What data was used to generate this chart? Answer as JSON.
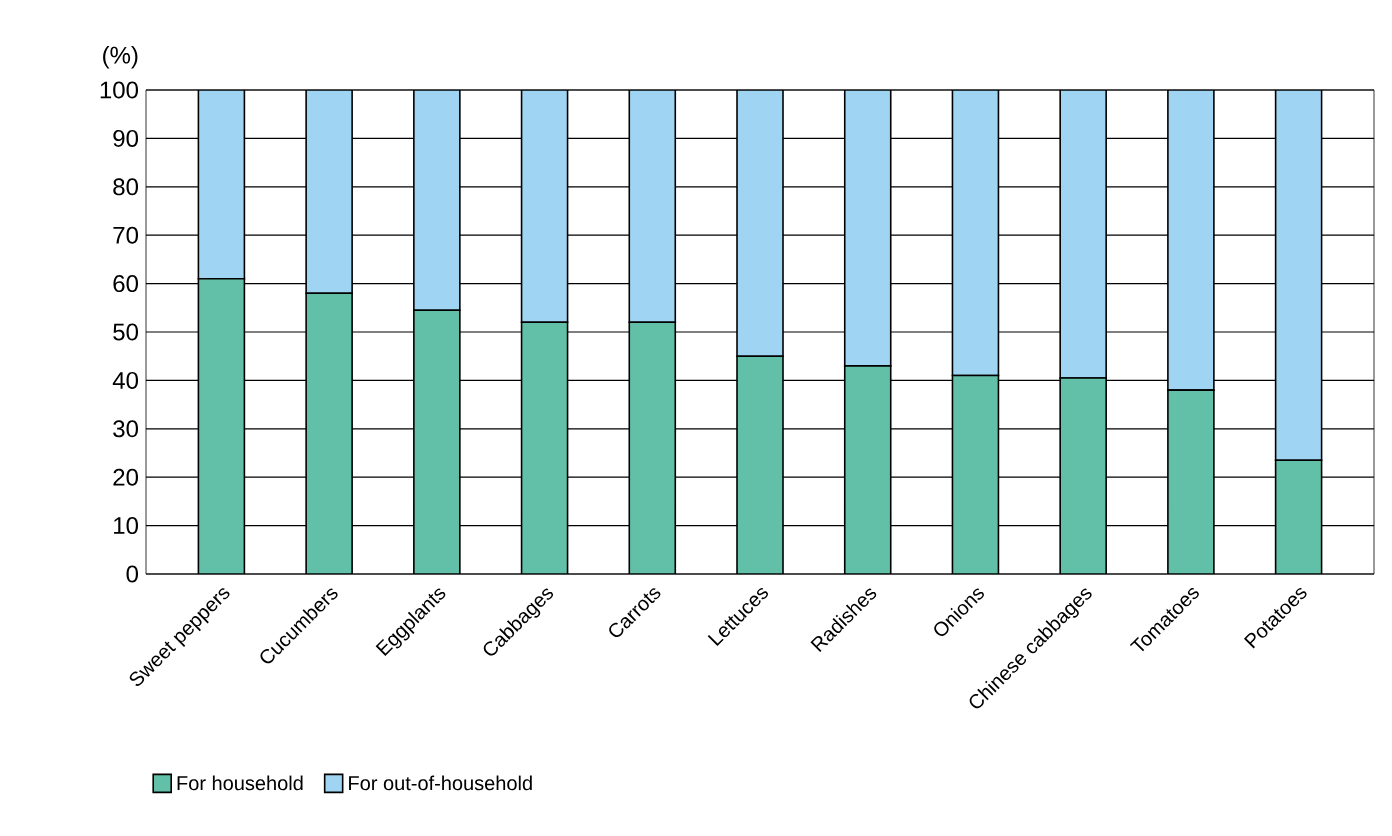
{
  "chart_data": {
    "type": "bar",
    "stacked": true,
    "ylabel": "(%)",
    "categories": [
      "Sweet peppers",
      "Cucumbers",
      "Eggplants",
      "Cabbages",
      "Carrots",
      "Lettuces",
      "Radishes",
      "Onions",
      "Chinese cabbages",
      "Tomatoes",
      "Potatoes"
    ],
    "series": [
      {
        "name": "For household",
        "color": "#62c0a8",
        "values": [
          61,
          58,
          54.5,
          52,
          52,
          45,
          43,
          41,
          40.5,
          38,
          23.5
        ]
      },
      {
        "name": "For out-of-household",
        "color": "#9fd5f2",
        "values": [
          39,
          42,
          45.5,
          48,
          48,
          55,
          57,
          59,
          59.5,
          62,
          76.5
        ]
      }
    ],
    "ylim": [
      0,
      100
    ],
    "yticks": [
      0,
      10,
      20,
      30,
      40,
      50,
      60,
      70,
      80,
      90,
      100
    ],
    "grid": "y",
    "legend": "bottom"
  }
}
